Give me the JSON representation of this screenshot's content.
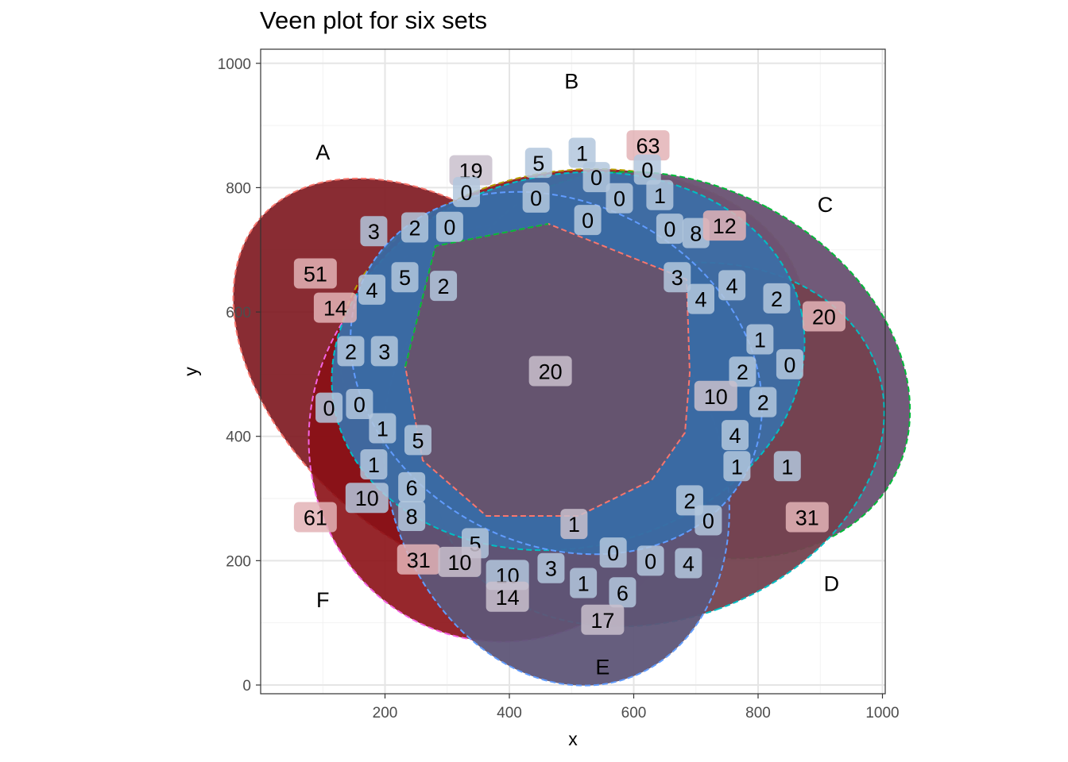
{
  "title": "Veen plot for six sets",
  "chart_data": {
    "type": "venn",
    "title": "Veen plot for six sets",
    "xlabel": "x",
    "ylabel": "y",
    "xlim": [
      0,
      1000
    ],
    "ylim": [
      0,
      1000
    ],
    "x_ticks": [
      200,
      400,
      600,
      800,
      1000
    ],
    "y_ticks": [
      0,
      200,
      400,
      600,
      800,
      1000
    ],
    "grid": true,
    "set_names": [
      "A",
      "B",
      "C",
      "D",
      "E",
      "F"
    ],
    "set_labels": [
      {
        "name": "A",
        "x": 100,
        "y": 858
      },
      {
        "name": "B",
        "x": 500,
        "y": 972
      },
      {
        "name": "C",
        "x": 908,
        "y": 774
      },
      {
        "name": "D",
        "x": 918,
        "y": 164
      },
      {
        "name": "E",
        "x": 550,
        "y": 30
      },
      {
        "name": "F",
        "x": 100,
        "y": 138
      }
    ],
    "regions": [
      {
        "label": "63",
        "x": 623,
        "y": 868,
        "count": 63,
        "tint": "red"
      },
      {
        "label": "1",
        "x": 517,
        "y": 856,
        "count": 1,
        "tint": "blue"
      },
      {
        "label": "5",
        "x": 447,
        "y": 840,
        "count": 5,
        "tint": "blue"
      },
      {
        "label": "19",
        "x": 338,
        "y": 828,
        "count": 19,
        "tint": "purple"
      },
      {
        "label": "0",
        "x": 622,
        "y": 829,
        "count": 0,
        "tint": "blue"
      },
      {
        "label": "0",
        "x": 540,
        "y": 817,
        "count": 0,
        "tint": "blue"
      },
      {
        "label": "0",
        "x": 331,
        "y": 793,
        "count": 0,
        "tint": "blue"
      },
      {
        "label": "0",
        "x": 443,
        "y": 784,
        "count": 0,
        "tint": "blue"
      },
      {
        "label": "0",
        "x": 577,
        "y": 783,
        "count": 0,
        "tint": "blue"
      },
      {
        "label": "1",
        "x": 642,
        "y": 788,
        "count": 1,
        "tint": "blue"
      },
      {
        "label": "0",
        "x": 526,
        "y": 748,
        "count": 0,
        "tint": "blue"
      },
      {
        "label": "0",
        "x": 658,
        "y": 734,
        "count": 0,
        "tint": "blue"
      },
      {
        "label": "8",
        "x": 700,
        "y": 727,
        "count": 8,
        "tint": "blue"
      },
      {
        "label": "12",
        "x": 746,
        "y": 739,
        "count": 12,
        "tint": "red"
      },
      {
        "label": "3",
        "x": 182,
        "y": 730,
        "count": 3,
        "tint": "blue"
      },
      {
        "label": "2",
        "x": 248,
        "y": 736,
        "count": 2,
        "tint": "blue"
      },
      {
        "label": "0",
        "x": 304,
        "y": 737,
        "count": 0,
        "tint": "blue"
      },
      {
        "label": "51",
        "x": 88,
        "y": 662,
        "count": 51,
        "tint": "red"
      },
      {
        "label": "5",
        "x": 232,
        "y": 656,
        "count": 5,
        "tint": "blue"
      },
      {
        "label": "3",
        "x": 670,
        "y": 656,
        "count": 3,
        "tint": "blue"
      },
      {
        "label": "4",
        "x": 179,
        "y": 636,
        "count": 4,
        "tint": "blue"
      },
      {
        "label": "2",
        "x": 294,
        "y": 642,
        "count": 2,
        "tint": "blue"
      },
      {
        "label": "4",
        "x": 758,
        "y": 643,
        "count": 4,
        "tint": "blue"
      },
      {
        "label": "4",
        "x": 708,
        "y": 621,
        "count": 4,
        "tint": "blue"
      },
      {
        "label": "2",
        "x": 830,
        "y": 622,
        "count": 2,
        "tint": "blue"
      },
      {
        "label": "14",
        "x": 120,
        "y": 607,
        "count": 14,
        "tint": "red"
      },
      {
        "label": "20",
        "x": 906,
        "y": 593,
        "count": 20,
        "tint": "red"
      },
      {
        "label": "1",
        "x": 803,
        "y": 556,
        "count": 1,
        "tint": "blue"
      },
      {
        "label": "2",
        "x": 145,
        "y": 537,
        "count": 2,
        "tint": "blue"
      },
      {
        "label": "3",
        "x": 199,
        "y": 537,
        "count": 3,
        "tint": "blue"
      },
      {
        "label": "0",
        "x": 851,
        "y": 516,
        "count": 0,
        "tint": "blue"
      },
      {
        "label": "20",
        "x": 466,
        "y": 505,
        "count": 20,
        "tint": "purple"
      },
      {
        "label": "2",
        "x": 775,
        "y": 504,
        "count": 2,
        "tint": "blue"
      },
      {
        "label": "10",
        "x": 732,
        "y": 465,
        "count": 10,
        "tint": "purple"
      },
      {
        "label": "2",
        "x": 808,
        "y": 455,
        "count": 2,
        "tint": "blue"
      },
      {
        "label": "0",
        "x": 110,
        "y": 446,
        "count": 0,
        "tint": "blue"
      },
      {
        "label": "0",
        "x": 159,
        "y": 452,
        "count": 0,
        "tint": "blue"
      },
      {
        "label": "1",
        "x": 196,
        "y": 413,
        "count": 1,
        "tint": "blue"
      },
      {
        "label": "4",
        "x": 763,
        "y": 402,
        "count": 4,
        "tint": "blue"
      },
      {
        "label": "5",
        "x": 253,
        "y": 394,
        "count": 5,
        "tint": "blue"
      },
      {
        "label": "1",
        "x": 182,
        "y": 355,
        "count": 1,
        "tint": "blue"
      },
      {
        "label": "1",
        "x": 766,
        "y": 352,
        "count": 1,
        "tint": "blue"
      },
      {
        "label": "1",
        "x": 847,
        "y": 352,
        "count": 1,
        "tint": "blue"
      },
      {
        "label": "6",
        "x": 243,
        "y": 318,
        "count": 6,
        "tint": "blue"
      },
      {
        "label": "10",
        "x": 171,
        "y": 301,
        "count": 10,
        "tint": "blue"
      },
      {
        "label": "2",
        "x": 690,
        "y": 297,
        "count": 2,
        "tint": "blue"
      },
      {
        "label": "61",
        "x": 88,
        "y": 270,
        "count": 61,
        "tint": "red"
      },
      {
        "label": "8",
        "x": 243,
        "y": 272,
        "count": 8,
        "tint": "blue"
      },
      {
        "label": "0",
        "x": 720,
        "y": 265,
        "count": 0,
        "tint": "blue"
      },
      {
        "label": "31",
        "x": 879,
        "y": 270,
        "count": 31,
        "tint": "red"
      },
      {
        "label": "1",
        "x": 504,
        "y": 259,
        "count": 1,
        "tint": "purple"
      },
      {
        "label": "5",
        "x": 345,
        "y": 228,
        "count": 5,
        "tint": "blue"
      },
      {
        "label": "31",
        "x": 254,
        "y": 202,
        "count": 31,
        "tint": "red"
      },
      {
        "label": "10",
        "x": 320,
        "y": 198,
        "count": 10,
        "tint": "purple"
      },
      {
        "label": "0",
        "x": 567,
        "y": 213,
        "count": 0,
        "tint": "blue"
      },
      {
        "label": "0",
        "x": 627,
        "y": 200,
        "count": 0,
        "tint": "blue"
      },
      {
        "label": "4",
        "x": 688,
        "y": 196,
        "count": 4,
        "tint": "blue"
      },
      {
        "label": "3",
        "x": 467,
        "y": 188,
        "count": 3,
        "tint": "blue"
      },
      {
        "label": "10",
        "x": 397,
        "y": 177,
        "count": 10,
        "tint": "blue"
      },
      {
        "label": "1",
        "x": 519,
        "y": 164,
        "count": 1,
        "tint": "blue"
      },
      {
        "label": "6",
        "x": 582,
        "y": 149,
        "count": 6,
        "tint": "blue"
      },
      {
        "label": "14",
        "x": 397,
        "y": 142,
        "count": 14,
        "tint": "purple"
      },
      {
        "label": "17",
        "x": 550,
        "y": 105,
        "count": 17,
        "tint": "purple"
      }
    ]
  }
}
